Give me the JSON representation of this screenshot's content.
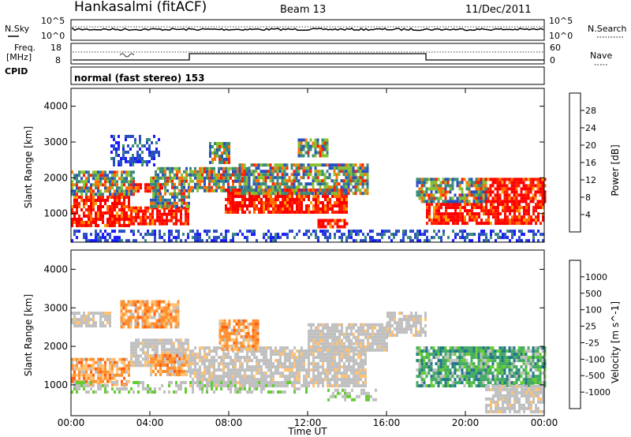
{
  "header": {
    "station": "Hankasalmi (fitACF)",
    "beam": "Beam 13",
    "date": "11/Dec/2011"
  },
  "top_panels": {
    "nsky": {
      "label": "N.Sky",
      "ticks": [
        "10^5",
        "10^0"
      ]
    },
    "nsearch": {
      "label": "N.Search",
      "ticks": [
        "10^5",
        "10^0"
      ]
    },
    "freq": {
      "label_line1": "Freq.",
      "label_line2": "[MHz]",
      "ticks": [
        "18",
        "8"
      ]
    },
    "nave": {
      "label": "Nave",
      "ticks": [
        "60",
        "0"
      ]
    },
    "cpid": {
      "label": "CPID",
      "mode": "normal (fast stereo) 153"
    }
  },
  "colors": {
    "power_scale": [
      "#1a1aff",
      "#2a4fc0",
      "#3a8a7a",
      "#4aa050",
      "#88c030",
      "#e0c000",
      "#ffa000",
      "#ff7000",
      "#ff2000",
      "#ff0000"
    ],
    "velocity_scale": [
      "#2244cc",
      "#227788",
      "#44aa66",
      "#66cc33",
      "#c0c0c0",
      "#ffc070",
      "#ff9030",
      "#ff6010",
      "#ff0000"
    ]
  },
  "chart_data": [
    {
      "type": "heatmap",
      "name": "power",
      "xlabel": "",
      "ylabel": "Slant Range [km]",
      "xlim": [
        0,
        24
      ],
      "ylim": [
        200,
        4500
      ],
      "yticks": [
        "4000",
        "3000",
        "2000",
        "1000"
      ],
      "colorbar": {
        "label": "Power [dB]",
        "ticks": [
          "28",
          "24",
          "20",
          "16",
          "12",
          "8",
          "4"
        ]
      },
      "bands": [
        {
          "t0": 0.0,
          "t1": 3.0,
          "r0": 700,
          "r1": 1500,
          "level": "high"
        },
        {
          "t0": 3.0,
          "t1": 6.0,
          "r0": 700,
          "r1": 1200,
          "level": "high"
        },
        {
          "t0": 3.0,
          "t1": 4.6,
          "r0": 1650,
          "r1": 1850,
          "level": "high"
        },
        {
          "t0": 0.0,
          "t1": 3.2,
          "r0": 1500,
          "r1": 2200,
          "level": "mid"
        },
        {
          "t0": 4.0,
          "t1": 6.0,
          "r0": 1200,
          "r1": 2300,
          "level": "mid"
        },
        {
          "t0": 6.0,
          "t1": 9.0,
          "r0": 1600,
          "r1": 2300,
          "level": "mid"
        },
        {
          "t0": 7.8,
          "t1": 14.0,
          "r0": 1000,
          "r1": 1700,
          "level": "high"
        },
        {
          "t0": 8.5,
          "t1": 15.0,
          "r0": 1600,
          "r1": 2400,
          "level": "mid"
        },
        {
          "t0": 12.5,
          "t1": 14.0,
          "r0": 650,
          "r1": 850,
          "level": "high"
        },
        {
          "t0": 18.0,
          "t1": 24.0,
          "r0": 700,
          "r1": 1300,
          "level": "high"
        },
        {
          "t0": 20.5,
          "t1": 24.0,
          "r0": 1300,
          "r1": 2000,
          "level": "high"
        },
        {
          "t0": 17.5,
          "t1": 21.0,
          "r0": 1300,
          "r1": 2000,
          "level": "mid"
        },
        {
          "t0": 2.0,
          "t1": 4.5,
          "r0": 2400,
          "r1": 3200,
          "level": "low"
        },
        {
          "t0": 7.0,
          "t1": 8.0,
          "r0": 2400,
          "r1": 3000,
          "level": "mid"
        },
        {
          "t0": 11.5,
          "t1": 13.0,
          "r0": 2600,
          "r1": 3100,
          "level": "mid"
        },
        {
          "t0": 0.0,
          "t1": 24.0,
          "r0": 250,
          "r1": 550,
          "level": "low"
        }
      ]
    },
    {
      "type": "heatmap",
      "name": "velocity",
      "xlabel": "Time UT",
      "ylabel": "Slant Range [km]",
      "xlim": [
        0,
        24
      ],
      "ylim": [
        200,
        4500
      ],
      "xticks": [
        "00:00",
        "04:00",
        "08:00",
        "12:00",
        "16:00",
        "20:00",
        "00:00"
      ],
      "yticks": [
        "4000",
        "3000",
        "2000",
        "1000"
      ],
      "colorbar": {
        "label": "Velocity [m s^-1]",
        "ticks": [
          "1000",
          "500",
          "100",
          "25",
          "-25",
          "-100",
          "-500",
          "-1000"
        ]
      },
      "bands": [
        {
          "t0": 0.0,
          "t1": 3.0,
          "r0": 1000,
          "r1": 1700,
          "level": "neg"
        },
        {
          "t0": 0.0,
          "t1": 2.0,
          "r0": 2500,
          "r1": 2900,
          "level": "zero"
        },
        {
          "t0": 2.5,
          "t1": 5.5,
          "r0": 2500,
          "r1": 3200,
          "level": "neg"
        },
        {
          "t0": 3.0,
          "t1": 6.0,
          "r0": 1500,
          "r1": 2200,
          "level": "zero"
        },
        {
          "t0": 4.0,
          "t1": 6.0,
          "r0": 1300,
          "r1": 1800,
          "level": "neg"
        },
        {
          "t0": 6.0,
          "t1": 15.0,
          "r0": 1000,
          "r1": 2000,
          "level": "zero"
        },
        {
          "t0": 7.5,
          "t1": 9.5,
          "r0": 1900,
          "r1": 2700,
          "level": "neg"
        },
        {
          "t0": 12.0,
          "t1": 16.0,
          "r0": 1900,
          "r1": 2600,
          "level": "zero"
        },
        {
          "t0": 16.0,
          "t1": 18.0,
          "r0": 2300,
          "r1": 2900,
          "level": "zero"
        },
        {
          "t0": 17.5,
          "t1": 24.0,
          "r0": 1000,
          "r1": 2000,
          "level": "pos"
        },
        {
          "t0": 21.0,
          "t1": 24.0,
          "r0": 300,
          "r1": 1000,
          "level": "zero"
        },
        {
          "t0": 0.0,
          "t1": 12.0,
          "r0": 800,
          "r1": 1100,
          "level": "low"
        },
        {
          "t0": 13.0,
          "t1": 15.5,
          "r0": 650,
          "r1": 900,
          "level": "low"
        }
      ]
    }
  ]
}
